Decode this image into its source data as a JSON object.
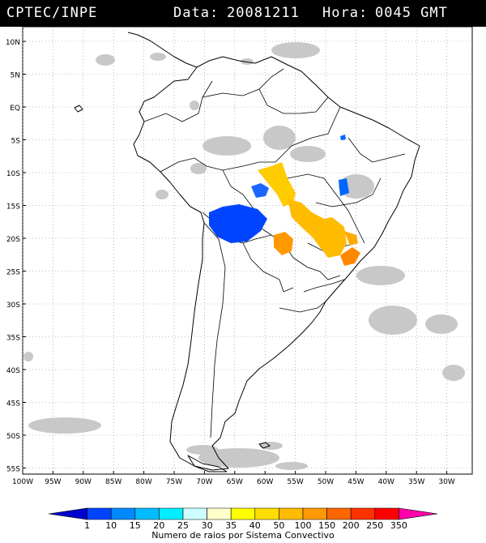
{
  "header": {
    "source": "CPTEC/INPE",
    "date_label": "Data:",
    "date": "20081211",
    "hour_label": "Hora:",
    "hour": "0045 GMT"
  },
  "map": {
    "lat_labels": [
      "10N",
      "5N",
      "EQ",
      "5S",
      "10S",
      "15S",
      "20S",
      "25S",
      "30S",
      "35S",
      "40S",
      "45S",
      "50S",
      "55S"
    ],
    "lon_labels": [
      "100W",
      "95W",
      "90W",
      "85W",
      "80W",
      "75W",
      "70W",
      "65W",
      "60W",
      "55W",
      "50W",
      "45W",
      "40W",
      "35W",
      "30W"
    ],
    "colors": {
      "land_outline": "#000000",
      "cloud": "#c8c8c8",
      "grid": "#888888"
    }
  },
  "legend": {
    "title": "Numero de raios por Sistema Convectivo",
    "ticks": [
      "1",
      "10",
      "15",
      "20",
      "25",
      "30",
      "35",
      "40",
      "50",
      "100",
      "150",
      "200",
      "250",
      "350"
    ],
    "colors": [
      "#0000cc",
      "#0044ff",
      "#0088ff",
      "#00bbff",
      "#00eeff",
      "#ccffff",
      "#ffffcc",
      "#ffff00",
      "#ffdd00",
      "#ffbb00",
      "#ff9900",
      "#ff6600",
      "#ff3300",
      "#ff0000",
      "#ff00aa"
    ]
  }
}
